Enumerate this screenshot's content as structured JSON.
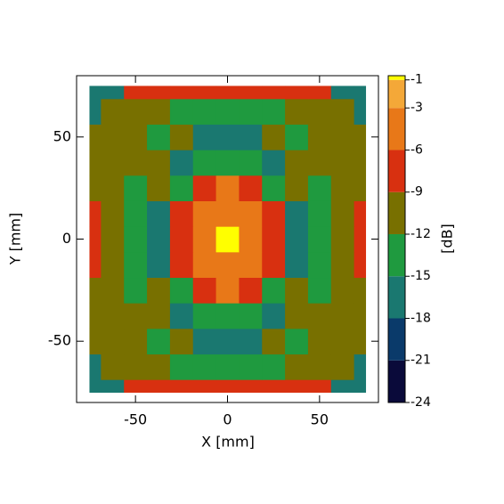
{
  "chart_data": {
    "type": "contour",
    "xlabel": "X [mm]",
    "ylabel": "Y [mm]",
    "colorbar_label": "[dB]",
    "x": [
      -75,
      -62.5,
      -50,
      -37.5,
      -25,
      -12.5,
      0,
      12.5,
      25,
      37.5,
      50,
      62.5,
      75
    ],
    "y": [
      -75,
      -62.5,
      -50,
      -37.5,
      -25,
      -12.5,
      0,
      12.5,
      25,
      37.5,
      50,
      62.5,
      75
    ],
    "z": [
      [
        -16,
        -16,
        -7.5,
        -7.5,
        -7.5,
        -7.5,
        -7.5,
        -7.5,
        -7.5,
        -7.5,
        -7.5,
        -16,
        -16
      ],
      [
        -16,
        -10.5,
        -10.5,
        -10.5,
        -13.5,
        -13.5,
        -13.5,
        -13.5,
        -13.5,
        -10.5,
        -10.5,
        -10.5,
        -16
      ],
      [
        -10.5,
        -10.5,
        -10.5,
        -13.5,
        -10.5,
        -17,
        -17,
        -17,
        -10.5,
        -13.5,
        -10.5,
        -10.5,
        -10.5
      ],
      [
        -10.5,
        -10.5,
        -10.5,
        -10.5,
        -17,
        -13.5,
        -13.5,
        -13.5,
        -17,
        -10.5,
        -10.5,
        -10.5,
        -10.5
      ],
      [
        -10.5,
        -10.5,
        -13.5,
        -10.5,
        -13.5,
        -7.5,
        -4,
        -7.5,
        -13.5,
        -10.5,
        -13.5,
        -10.5,
        -10.5
      ],
      [
        -7.5,
        -10.5,
        -13.5,
        -17,
        -7.5,
        -4,
        -4,
        -4,
        -7.5,
        -17,
        -13.5,
        -10.5,
        -7.5
      ],
      [
        -7.5,
        -10.5,
        -13.5,
        -17,
        -7.5,
        -4,
        -1,
        -4,
        -7.5,
        -17,
        -13.5,
        -10.5,
        -7.5
      ],
      [
        -7.5,
        -10.5,
        -13.5,
        -17,
        -7.5,
        -4,
        -4,
        -4,
        -7.5,
        -17,
        -13.5,
        -10.5,
        -7.5
      ],
      [
        -10.5,
        -10.5,
        -13.5,
        -10.5,
        -13.5,
        -7.5,
        -4,
        -7.5,
        -13.5,
        -10.5,
        -13.5,
        -10.5,
        -10.5
      ],
      [
        -10.5,
        -10.5,
        -10.5,
        -10.5,
        -17,
        -13.5,
        -13.5,
        -13.5,
        -17,
        -10.5,
        -10.5,
        -10.5,
        -10.5
      ],
      [
        -10.5,
        -10.5,
        -10.5,
        -13.5,
        -10.5,
        -17,
        -17,
        -17,
        -10.5,
        -13.5,
        -10.5,
        -10.5,
        -10.5
      ],
      [
        -16,
        -10.5,
        -10.5,
        -10.5,
        -13.5,
        -13.5,
        -13.5,
        -13.5,
        -13.5,
        -10.5,
        -10.5,
        -10.5,
        -16
      ],
      [
        -16,
        -16,
        -7.5,
        -7.5,
        -7.5,
        -7.5,
        -7.5,
        -7.5,
        -7.5,
        -7.5,
        -7.5,
        -16,
        -16
      ]
    ],
    "levels": [
      -24,
      -21,
      -18,
      -15,
      -12,
      -9,
      -6,
      -3,
      -1
    ],
    "colors": [
      "#0a0a3a",
      "#0a3a6a",
      "#1a7870",
      "#1f9a3f",
      "#787000",
      "#d83010",
      "#e87818",
      "#f4a838",
      "#ffff00"
    ],
    "clim": [
      -24,
      -0.7
    ],
    "cticks": [
      -24,
      -21,
      -18,
      -15,
      -12,
      -9,
      -6,
      -3,
      -1
    ],
    "xlim": [
      -82,
      82
    ],
    "ylim": [
      -80,
      80
    ],
    "xticks": [
      -50,
      0,
      50
    ],
    "yticks": [
      -50,
      0,
      50
    ]
  }
}
